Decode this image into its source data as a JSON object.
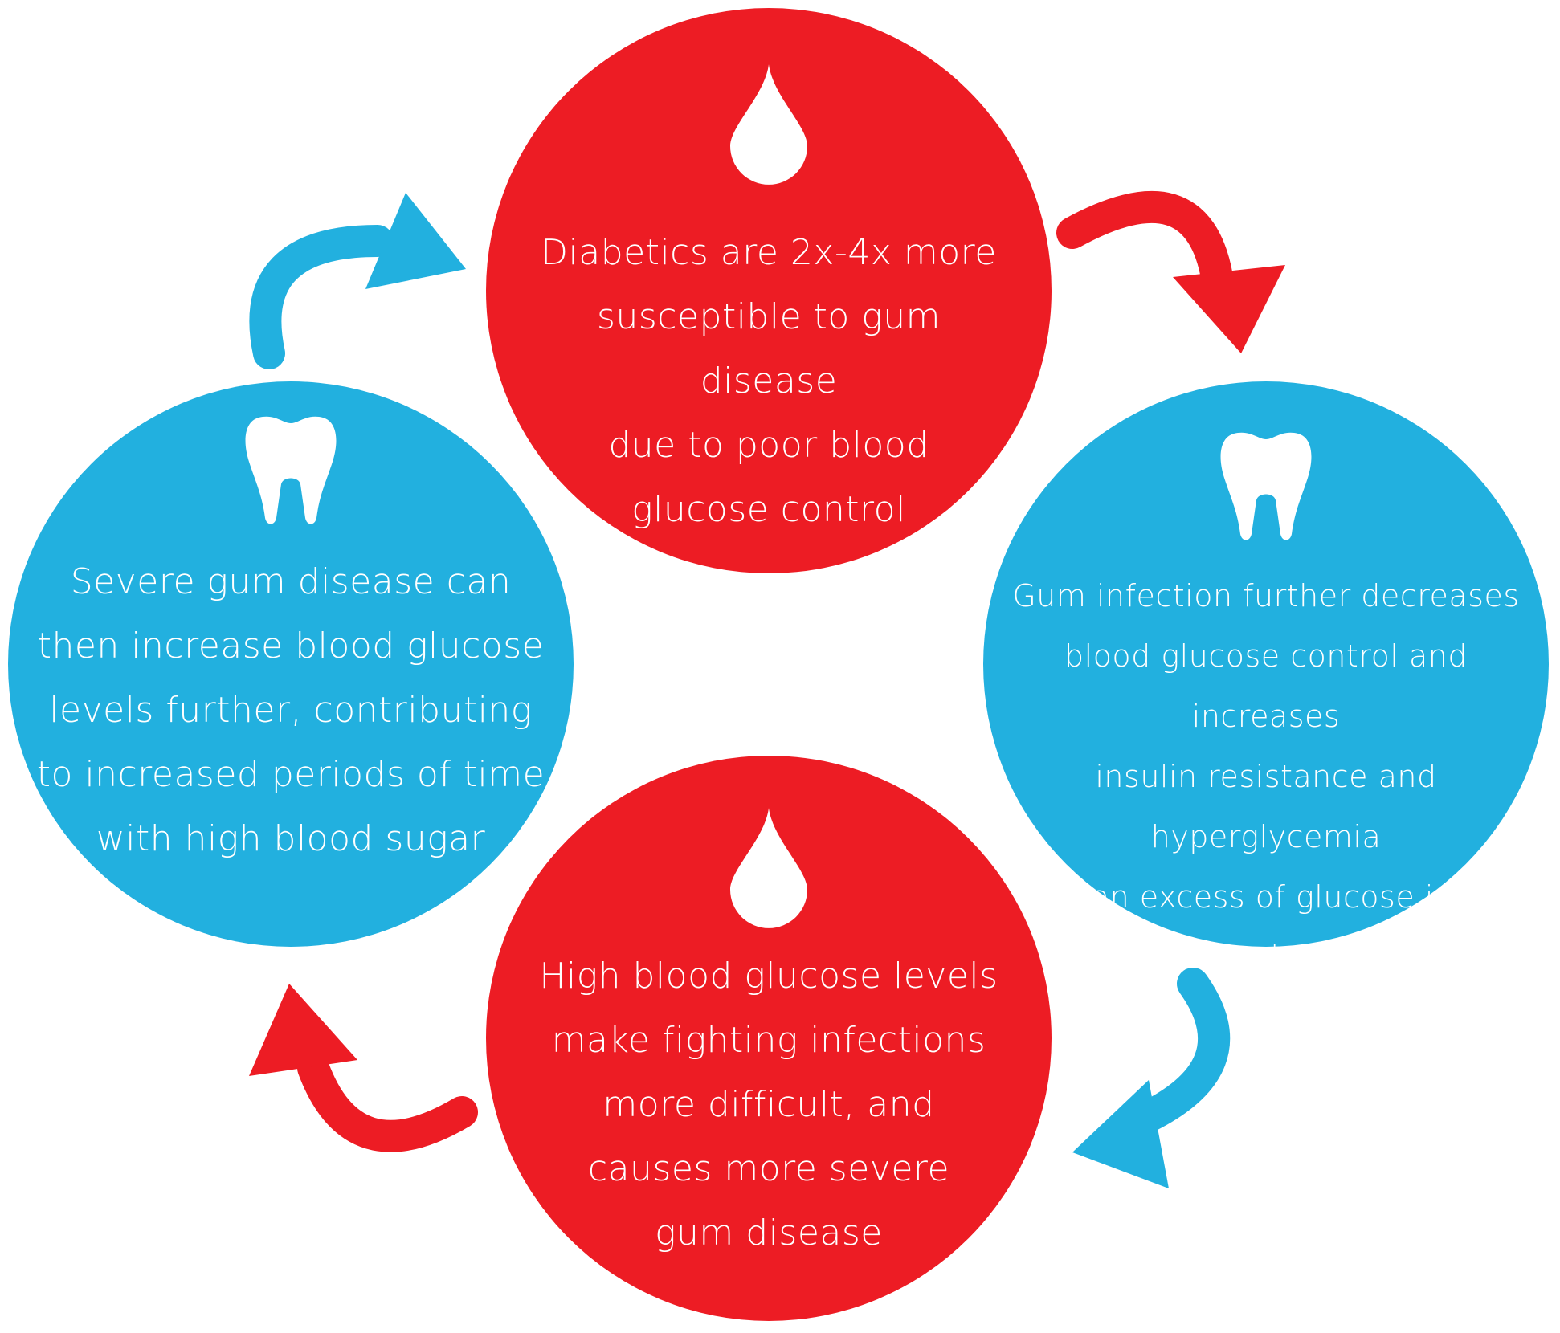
{
  "colors": {
    "red": "#ed1c24",
    "blue": "#22b0df",
    "background": "#ffffff",
    "text": "#ffffff"
  },
  "nodes": {
    "top": {
      "icon": "blood-drop-icon",
      "text": "Diabetics are 2x-4x more\nsusceptible to gum disease\ndue to poor blood\nglucose control"
    },
    "right": {
      "icon": "tooth-icon",
      "text": "Gum infection further decreases\nblood glucose control and increases\ninsulin resistance and hyperglycemia\n(an excess of glucose in\nthe bloodstream)"
    },
    "bottom": {
      "icon": "blood-drop-icon",
      "text": "High blood glucose levels\nmake fighting infections\nmore difficult, and\ncauses more severe\ngum disease"
    },
    "left": {
      "icon": "tooth-icon",
      "text": "Severe gum disease can\nthen increase blood glucose\nlevels further, contributing\nto increased periods of time\nwith high blood sugar"
    }
  },
  "arrows": [
    {
      "from": "top",
      "to": "right",
      "color": "red"
    },
    {
      "from": "right",
      "to": "bottom",
      "color": "blue"
    },
    {
      "from": "bottom",
      "to": "left",
      "color": "red"
    },
    {
      "from": "left",
      "to": "top",
      "color": "blue"
    }
  ]
}
